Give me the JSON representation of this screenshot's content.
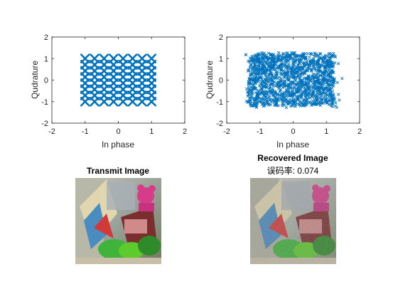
{
  "figure": {
    "background": "#ffffff",
    "marker_color": "#0072BD"
  },
  "chart_data": [
    {
      "type": "scatter",
      "panel": "transmit-constellation",
      "xlabel": "In phase",
      "ylabel": "Qudrature",
      "xlim": [
        -2,
        2
      ],
      "ylim": [
        -2,
        2
      ],
      "xticks": [
        "-2",
        "-1",
        "0",
        "1",
        "2"
      ],
      "yticks": [
        "-2",
        "-1",
        "0",
        "1",
        "2"
      ],
      "grid": false,
      "marker": "x",
      "series": [
        {
          "i_levels": [
            -1,
            -0.714,
            -0.429,
            -0.143,
            0.143,
            0.429,
            0.714,
            1
          ],
          "q_levels": [
            -1,
            -0.714,
            -0.429,
            -0.143,
            0.143,
            0.429,
            0.714,
            1
          ]
        }
      ]
    },
    {
      "type": "scatter",
      "panel": "received-constellation",
      "xlabel": "In phase",
      "ylabel": "Qudrature",
      "xlim": [
        -2,
        2
      ],
      "ylim": [
        -2,
        2
      ],
      "xticks": [
        "-2",
        "-1",
        "0",
        "1",
        "2"
      ],
      "yticks": [
        "-2",
        "-1",
        "0",
        "1",
        "2"
      ],
      "grid": false,
      "marker": "x",
      "series": [
        {
          "cloud_xlim": [
            -1.35,
            1.25
          ],
          "cloud_ylim": [
            -1.2,
            1.25
          ]
        }
      ]
    }
  ],
  "images": {
    "transmit": {
      "title": "Transmit Image"
    },
    "recovered": {
      "title": "Recovered Image",
      "ber_label": "误码率: 0.074"
    }
  }
}
